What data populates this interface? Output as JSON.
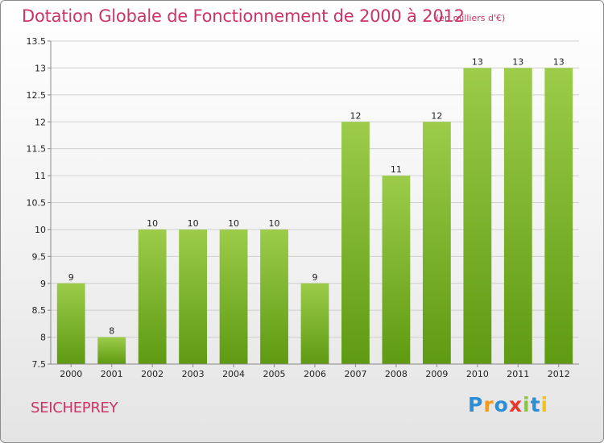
{
  "chart_data": {
    "type": "bar",
    "title": "Dotation Globale de Fonctionnement de 2000 à 2012",
    "subtitle": "(en milliers d'€)",
    "categories": [
      "2000",
      "2001",
      "2002",
      "2003",
      "2004",
      "2005",
      "2006",
      "2007",
      "2008",
      "2009",
      "2010",
      "2011",
      "2012"
    ],
    "values": [
      9,
      8,
      10,
      10,
      10,
      10,
      9,
      12,
      11,
      12,
      13,
      13,
      13
    ],
    "data_labels": [
      "9",
      "8",
      "10",
      "10",
      "10",
      "10",
      "9",
      "12",
      "11",
      "12",
      "13",
      "13",
      "13"
    ],
    "ylim": [
      7.5,
      13.5
    ],
    "yticks": [
      7.5,
      8,
      8.5,
      9,
      9.5,
      10,
      10.5,
      11,
      11.5,
      12,
      12.5,
      13,
      13.5
    ],
    "ytick_labels": [
      "7.5",
      "8",
      "8.5",
      "9",
      "9.5",
      "10",
      "10.5",
      "11",
      "11.5",
      "12",
      "12.5",
      "13",
      "13.5"
    ],
    "grid": true,
    "legend": "none",
    "bar_color_top": "#9ccc4a",
    "bar_color_bottom": "#5e9a12"
  },
  "commune": "SEICHEPREY",
  "logo": {
    "letters": [
      "P",
      "r",
      "o",
      "x",
      "i",
      "t",
      "i"
    ],
    "colors": [
      "#2a8fd6",
      "#f29a1d",
      "#2a8fd6",
      "#e63a2e",
      "#8bc53f",
      "#2a8fd6",
      "#f2c11d"
    ]
  }
}
